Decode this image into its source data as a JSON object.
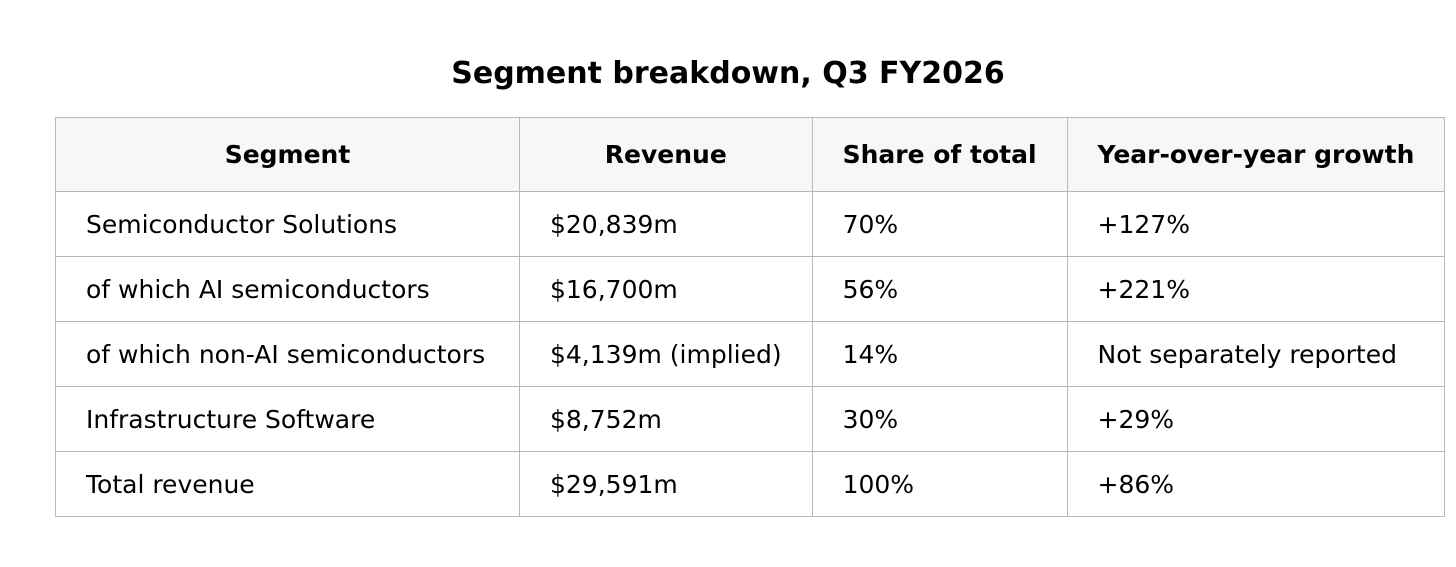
{
  "title": "Segment breakdown, Q3 FY2026",
  "table": {
    "headers": [
      "Segment",
      "Revenue",
      "Share of total",
      "Year-over-year growth"
    ],
    "rows": [
      {
        "segment": "Semiconductor Solutions",
        "revenue": "$20,839m",
        "share": "70%",
        "growth": "+127%"
      },
      {
        "segment": "of which AI semiconductors",
        "revenue": "$16,700m",
        "share": "56%",
        "growth": "+221%"
      },
      {
        "segment": "of which non-AI semiconductors",
        "revenue": "$4,139m (implied)",
        "share": "14%",
        "growth": "Not separately reported"
      },
      {
        "segment": "Infrastructure Software",
        "revenue": "$8,752m",
        "share": "30%",
        "growth": "+29%"
      },
      {
        "segment": "Total revenue",
        "revenue": "$29,591m",
        "share": "100%",
        "growth": "+86%"
      }
    ]
  }
}
